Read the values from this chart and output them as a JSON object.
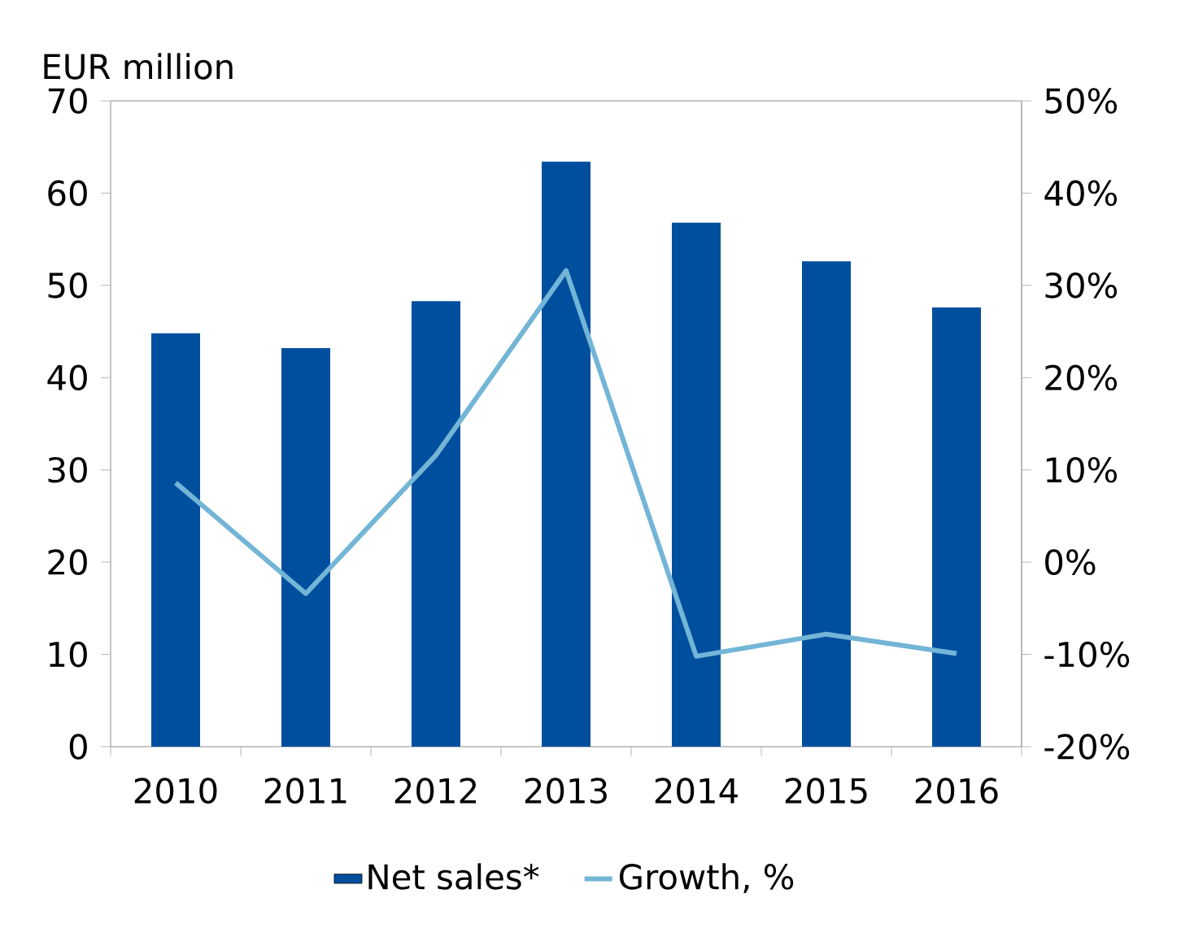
{
  "chart_data": {
    "type": "bar",
    "ylabel": "EUR million",
    "categories": [
      "2010",
      "2011",
      "2012",
      "2013",
      "2014",
      "2015",
      "2016"
    ],
    "series": [
      {
        "name": "Net sales*",
        "color": "#004f9f",
        "values": [
          44.8,
          43.2,
          48.3,
          63.4,
          56.8,
          52.6,
          47.6
        ]
      },
      {
        "name": "Growth, %",
        "type": "line",
        "axis": "y2",
        "color": "#73b5d6",
        "values": [
          8.6,
          -3.4,
          11.6,
          31.6,
          -10.2,
          -7.8,
          -9.9
        ]
      }
    ],
    "ylim": [
      0,
      70
    ],
    "yticks": [
      0,
      10,
      20,
      30,
      40,
      50,
      60,
      70
    ],
    "y2lim": [
      -20,
      50
    ],
    "y2ticks": [
      {
        "value": -20,
        "label": "-20%"
      },
      {
        "value": -10,
        "label": "-10%"
      },
      {
        "value": 0,
        "label": "0%"
      },
      {
        "value": 10,
        "label": "10%"
      },
      {
        "value": 20,
        "label": "20%"
      },
      {
        "value": 30,
        "label": "30%"
      },
      {
        "value": 40,
        "label": "40%"
      },
      {
        "value": 50,
        "label": "50%"
      }
    ],
    "legend": "bottom"
  }
}
